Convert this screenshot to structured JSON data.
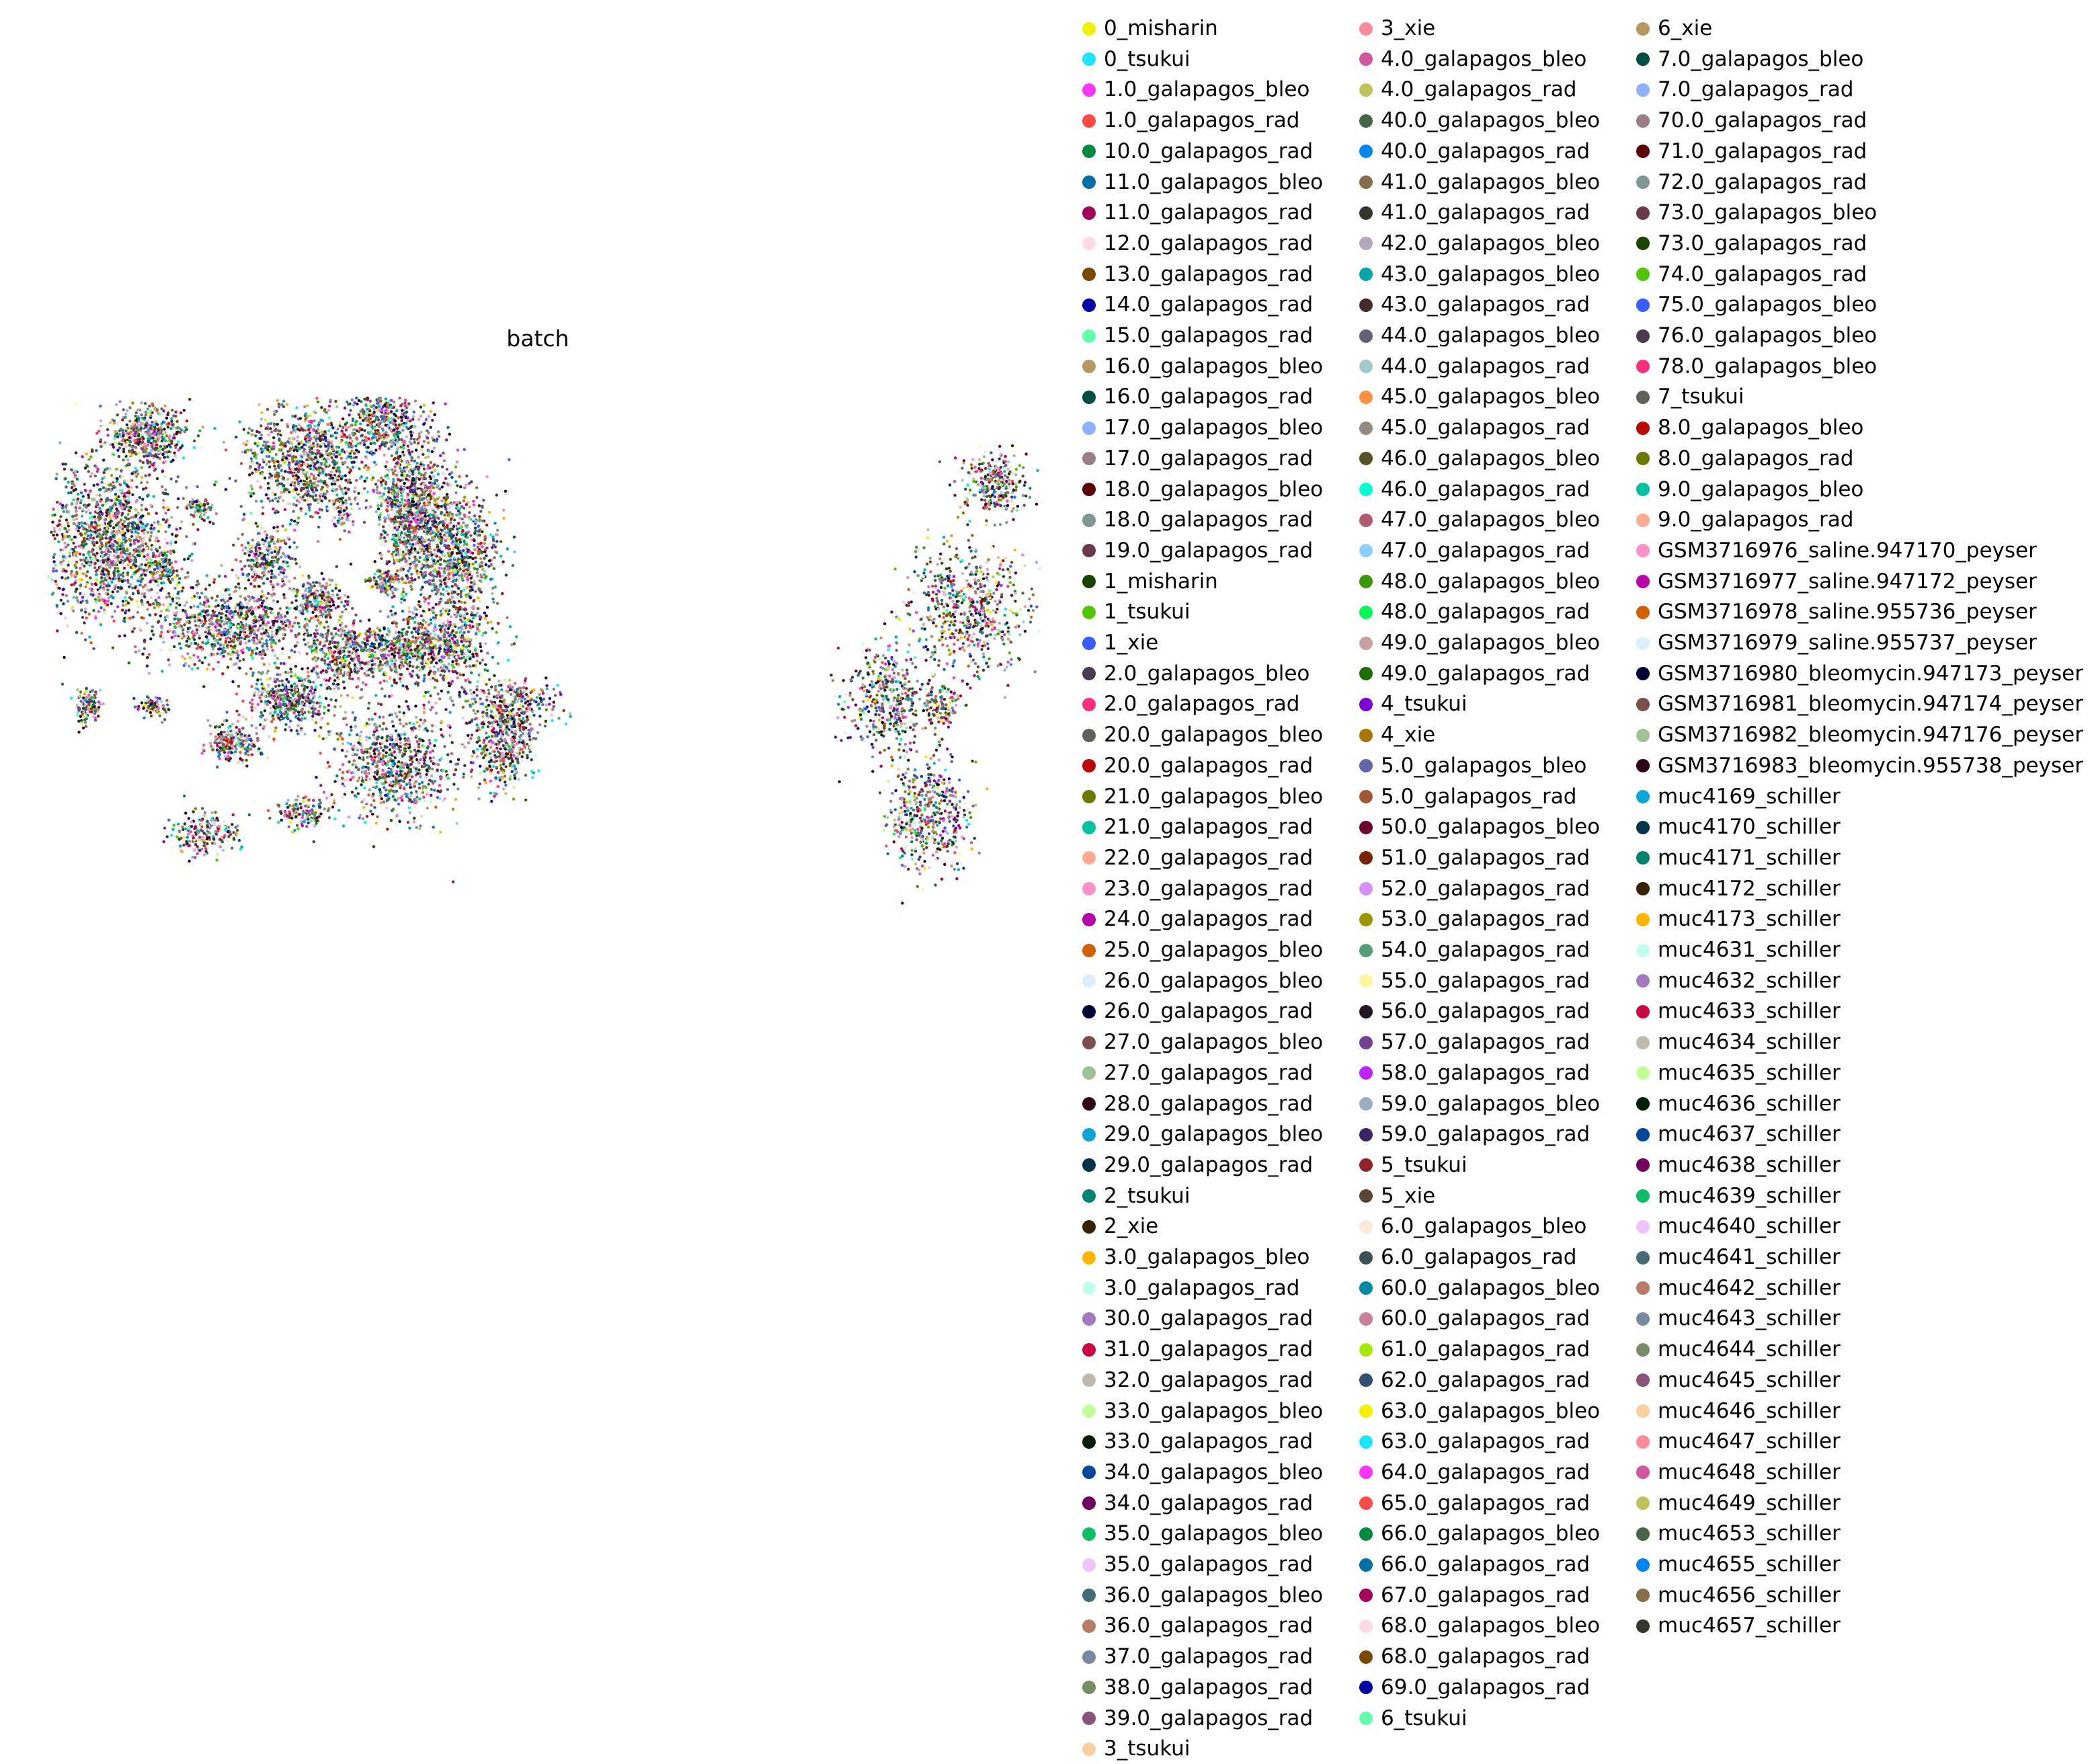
{
  "chart_data": {
    "type": "scatter",
    "title": "batch",
    "xlabel": "",
    "ylabel": "",
    "grid": false,
    "legend_position": "right",
    "series": [
      {
        "name": "0_misharin",
        "color": "#f2f200"
      },
      {
        "name": "0_tsukui",
        "color": "#1ce6ff"
      },
      {
        "name": "1.0_galapagos_bleo",
        "color": "#ff34ff"
      },
      {
        "name": "1.0_galapagos_rad",
        "color": "#ff4a46"
      },
      {
        "name": "10.0_galapagos_rad",
        "color": "#008941"
      },
      {
        "name": "11.0_galapagos_bleo",
        "color": "#006fa6"
      },
      {
        "name": "11.0_galapagos_rad",
        "color": "#a30059"
      },
      {
        "name": "12.0_galapagos_rad",
        "color": "#ffdbe5"
      },
      {
        "name": "13.0_galapagos_rad",
        "color": "#7a4900"
      },
      {
        "name": "14.0_galapagos_rad",
        "color": "#0000a6"
      },
      {
        "name": "15.0_galapagos_rad",
        "color": "#63ffac"
      },
      {
        "name": "16.0_galapagos_bleo",
        "color": "#b79762"
      },
      {
        "name": "16.0_galapagos_rad",
        "color": "#004d43"
      },
      {
        "name": "17.0_galapagos_bleo",
        "color": "#8fb0ff"
      },
      {
        "name": "17.0_galapagos_rad",
        "color": "#997d87"
      },
      {
        "name": "18.0_galapagos_bleo",
        "color": "#5a0007"
      },
      {
        "name": "18.0_galapagos_rad",
        "color": "#809693"
      },
      {
        "name": "19.0_galapagos_rad",
        "color": "#6a3a4c"
      },
      {
        "name": "1_misharin",
        "color": "#1b4400"
      },
      {
        "name": "1_tsukui",
        "color": "#4fc601"
      },
      {
        "name": "1_xie",
        "color": "#3b5dff"
      },
      {
        "name": "2.0_galapagos_bleo",
        "color": "#4a3b53"
      },
      {
        "name": "2.0_galapagos_rad",
        "color": "#ff2f80"
      },
      {
        "name": "20.0_galapagos_bleo",
        "color": "#61615a"
      },
      {
        "name": "20.0_galapagos_rad",
        "color": "#ba0900"
      },
      {
        "name": "21.0_galapagos_bleo",
        "color": "#6b7900"
      },
      {
        "name": "21.0_galapagos_rad",
        "color": "#00c2a0"
      },
      {
        "name": "22.0_galapagos_rad",
        "color": "#ffaa92"
      },
      {
        "name": "23.0_galapagos_rad",
        "color": "#ff90c9"
      },
      {
        "name": "24.0_galapagos_rad",
        "color": "#b903aa"
      },
      {
        "name": "25.0_galapagos_bleo",
        "color": "#d16100"
      },
      {
        "name": "26.0_galapagos_bleo",
        "color": "#ddefff"
      },
      {
        "name": "26.0_galapagos_rad",
        "color": "#000035"
      },
      {
        "name": "27.0_galapagos_bleo",
        "color": "#7b4f4b"
      },
      {
        "name": "27.0_galapagos_rad",
        "color": "#a1c299"
      },
      {
        "name": "28.0_galapagos_rad",
        "color": "#300018"
      },
      {
        "name": "29.0_galapagos_bleo",
        "color": "#0aa6d8"
      },
      {
        "name": "29.0_galapagos_rad",
        "color": "#013349"
      },
      {
        "name": "2_tsukui",
        "color": "#00846f"
      },
      {
        "name": "2_xie",
        "color": "#372101"
      },
      {
        "name": "3.0_galapagos_bleo",
        "color": "#ffb500"
      },
      {
        "name": "3.0_galapagos_rad",
        "color": "#c2ffed"
      },
      {
        "name": "30.0_galapagos_rad",
        "color": "#a079bf"
      },
      {
        "name": "31.0_galapagos_rad",
        "color": "#cc0744"
      },
      {
        "name": "32.0_galapagos_rad",
        "color": "#c0b9b2"
      },
      {
        "name": "33.0_galapagos_bleo",
        "color": "#c2ff99"
      },
      {
        "name": "33.0_galapagos_rad",
        "color": "#001e09"
      },
      {
        "name": "34.0_galapagos_bleo",
        "color": "#00489c"
      },
      {
        "name": "34.0_galapagos_rad",
        "color": "#6f0062"
      },
      {
        "name": "35.0_galapagos_bleo",
        "color": "#0cbd66"
      },
      {
        "name": "35.0_galapagos_rad",
        "color": "#eec3ff"
      },
      {
        "name": "36.0_galapagos_bleo",
        "color": "#456d75"
      },
      {
        "name": "36.0_galapagos_rad",
        "color": "#b77b68"
      },
      {
        "name": "37.0_galapagos_rad",
        "color": "#7a87a1"
      },
      {
        "name": "38.0_galapagos_rad",
        "color": "#788d66"
      },
      {
        "name": "39.0_galapagos_rad",
        "color": "#885578"
      },
      {
        "name": "3_tsukui",
        "color": "#fad09f"
      },
      {
        "name": "3_xie",
        "color": "#ff8a9a"
      },
      {
        "name": "4.0_galapagos_bleo",
        "color": "#d157a0"
      },
      {
        "name": "4.0_galapagos_rad",
        "color": "#bec459"
      },
      {
        "name": "40.0_galapagos_bleo",
        "color": "#456648"
      },
      {
        "name": "40.0_galapagos_rad",
        "color": "#0086ed"
      },
      {
        "name": "41.0_galapagos_bleo",
        "color": "#886f4c"
      },
      {
        "name": "41.0_galapagos_rad",
        "color": "#34362d"
      },
      {
        "name": "42.0_galapagos_bleo",
        "color": "#b4a8bd"
      },
      {
        "name": "43.0_galapagos_bleo",
        "color": "#00a6aa"
      },
      {
        "name": "43.0_galapagos_rad",
        "color": "#452c2c"
      },
      {
        "name": "44.0_galapagos_bleo",
        "color": "#636375"
      },
      {
        "name": "44.0_galapagos_rad",
        "color": "#a3c8c9"
      },
      {
        "name": "45.0_galapagos_bleo",
        "color": "#ff913f"
      },
      {
        "name": "45.0_galapagos_rad",
        "color": "#938a81"
      },
      {
        "name": "46.0_galapagos_bleo",
        "color": "#575329"
      },
      {
        "name": "46.0_galapagos_rad",
        "color": "#00fecf"
      },
      {
        "name": "47.0_galapagos_bleo",
        "color": "#b05b6f"
      },
      {
        "name": "47.0_galapagos_rad",
        "color": "#8cd0ff"
      },
      {
        "name": "48.0_galapagos_bleo",
        "color": "#3b9700"
      },
      {
        "name": "48.0_galapagos_rad",
        "color": "#04f757"
      },
      {
        "name": "49.0_galapagos_bleo",
        "color": "#c8a1a1"
      },
      {
        "name": "49.0_galapagos_rad",
        "color": "#1e6e00"
      },
      {
        "name": "4_tsukui",
        "color": "#7900d7"
      },
      {
        "name": "4_xie",
        "color": "#a77500"
      },
      {
        "name": "5.0_galapagos_bleo",
        "color": "#6367a9"
      },
      {
        "name": "5.0_galapagos_rad",
        "color": "#a05837"
      },
      {
        "name": "50.0_galapagos_bleo",
        "color": "#6b002c"
      },
      {
        "name": "51.0_galapagos_rad",
        "color": "#772600"
      },
      {
        "name": "52.0_galapagos_rad",
        "color": "#d790ff"
      },
      {
        "name": "53.0_galapagos_rad",
        "color": "#9b9700"
      },
      {
        "name": "54.0_galapagos_rad",
        "color": "#549e79"
      },
      {
        "name": "55.0_galapagos_rad",
        "color": "#fff69f"
      },
      {
        "name": "56.0_galapagos_rad",
        "color": "#201625"
      },
      {
        "name": "57.0_galapagos_rad",
        "color": "#72418f"
      },
      {
        "name": "58.0_galapagos_rad",
        "color": "#bc23ff"
      },
      {
        "name": "59.0_galapagos_bleo",
        "color": "#99adc0"
      },
      {
        "name": "59.0_galapagos_rad",
        "color": "#3a2465"
      },
      {
        "name": "5_tsukui",
        "color": "#922329"
      },
      {
        "name": "5_xie",
        "color": "#5b4534"
      },
      {
        "name": "6.0_galapagos_bleo",
        "color": "#fde8dc"
      },
      {
        "name": "6.0_galapagos_rad",
        "color": "#404e55"
      },
      {
        "name": "60.0_galapagos_bleo",
        "color": "#0089a3"
      },
      {
        "name": "60.0_galapagos_rad",
        "color": "#cb7e98"
      },
      {
        "name": "61.0_galapagos_rad",
        "color": "#a4e804"
      },
      {
        "name": "62.0_galapagos_rad",
        "color": "#324e72"
      },
      {
        "name": "63.0_galapagos_bleo",
        "color": "#f2f200"
      },
      {
        "name": "63.0_galapagos_rad",
        "color": "#1ce6ff"
      },
      {
        "name": "64.0_galapagos_rad",
        "color": "#ff34ff"
      },
      {
        "name": "65.0_galapagos_rad",
        "color": "#ff4a46"
      },
      {
        "name": "66.0_galapagos_bleo",
        "color": "#008941"
      },
      {
        "name": "66.0_galapagos_rad",
        "color": "#006fa6"
      },
      {
        "name": "67.0_galapagos_rad",
        "color": "#a30059"
      },
      {
        "name": "68.0_galapagos_bleo",
        "color": "#ffdbe5"
      },
      {
        "name": "68.0_galapagos_rad",
        "color": "#7a4900"
      },
      {
        "name": "69.0_galapagos_rad",
        "color": "#0000a6"
      },
      {
        "name": "6_tsukui",
        "color": "#63ffac"
      },
      {
        "name": "6_xie",
        "color": "#b79762"
      },
      {
        "name": "7.0_galapagos_bleo",
        "color": "#004d43"
      },
      {
        "name": "7.0_galapagos_rad",
        "color": "#8fb0ff"
      },
      {
        "name": "70.0_galapagos_rad",
        "color": "#997d87"
      },
      {
        "name": "71.0_galapagos_rad",
        "color": "#5a0007"
      },
      {
        "name": "72.0_galapagos_rad",
        "color": "#809693"
      },
      {
        "name": "73.0_galapagos_bleo",
        "color": "#6a3a4c"
      },
      {
        "name": "73.0_galapagos_rad",
        "color": "#1b4400"
      },
      {
        "name": "74.0_galapagos_rad",
        "color": "#4fc601"
      },
      {
        "name": "75.0_galapagos_bleo",
        "color": "#3b5dff"
      },
      {
        "name": "76.0_galapagos_bleo",
        "color": "#4a3b53"
      },
      {
        "name": "78.0_galapagos_bleo",
        "color": "#ff2f80"
      },
      {
        "name": "7_tsukui",
        "color": "#61615a"
      },
      {
        "name": "8.0_galapagos_bleo",
        "color": "#ba0900"
      },
      {
        "name": "8.0_galapagos_rad",
        "color": "#6b7900"
      },
      {
        "name": "9.0_galapagos_bleo",
        "color": "#00c2a0"
      },
      {
        "name": "9.0_galapagos_rad",
        "color": "#ffaa92"
      },
      {
        "name": "GSM3716976_saline.947170_peyser",
        "color": "#ff90c9"
      },
      {
        "name": "GSM3716977_saline.947172_peyser",
        "color": "#b903aa"
      },
      {
        "name": "GSM3716978_saline.955736_peyser",
        "color": "#d16100"
      },
      {
        "name": "GSM3716979_saline.955737_peyser",
        "color": "#ddefff"
      },
      {
        "name": "GSM3716980_bleomycin.947173_peyser",
        "color": "#000035"
      },
      {
        "name": "GSM3716981_bleomycin.947174_peyser",
        "color": "#7b4f4b"
      },
      {
        "name": "GSM3716982_bleomycin.947176_peyser",
        "color": "#a1c299"
      },
      {
        "name": "GSM3716983_bleomycin.955738_peyser",
        "color": "#300018"
      },
      {
        "name": "muc4169_schiller",
        "color": "#0aa6d8"
      },
      {
        "name": "muc4170_schiller",
        "color": "#013349"
      },
      {
        "name": "muc4171_schiller",
        "color": "#00846f"
      },
      {
        "name": "muc4172_schiller",
        "color": "#372101"
      },
      {
        "name": "muc4173_schiller",
        "color": "#ffb500"
      },
      {
        "name": "muc4631_schiller",
        "color": "#c2ffed"
      },
      {
        "name": "muc4632_schiller",
        "color": "#a079bf"
      },
      {
        "name": "muc4633_schiller",
        "color": "#cc0744"
      },
      {
        "name": "muc4634_schiller",
        "color": "#c0b9b2"
      },
      {
        "name": "muc4635_schiller",
        "color": "#c2ff99"
      },
      {
        "name": "muc4636_schiller",
        "color": "#001e09"
      },
      {
        "name": "muc4637_schiller",
        "color": "#00489c"
      },
      {
        "name": "muc4638_schiller",
        "color": "#6f0062"
      },
      {
        "name": "muc4639_schiller",
        "color": "#0cbd66"
      },
      {
        "name": "muc4640_schiller",
        "color": "#eec3ff"
      },
      {
        "name": "muc4641_schiller",
        "color": "#456d75"
      },
      {
        "name": "muc4642_schiller",
        "color": "#b77b68"
      },
      {
        "name": "muc4643_schiller",
        "color": "#7a87a1"
      },
      {
        "name": "muc4644_schiller",
        "color": "#788d66"
      },
      {
        "name": "muc4645_schiller",
        "color": "#885578"
      },
      {
        "name": "muc4646_schiller",
        "color": "#fad09f"
      },
      {
        "name": "muc4647_schiller",
        "color": "#ff8a9a"
      },
      {
        "name": "muc4648_schiller",
        "color": "#d157a0"
      },
      {
        "name": "muc4649_schiller",
        "color": "#bec459"
      },
      {
        "name": "muc4653_schiller",
        "color": "#456648"
      },
      {
        "name": "muc4655_schiller",
        "color": "#0086ed"
      },
      {
        "name": "muc4656_schiller",
        "color": "#886f4c"
      },
      {
        "name": "muc4657_schiller",
        "color": "#34362d"
      }
    ]
  }
}
